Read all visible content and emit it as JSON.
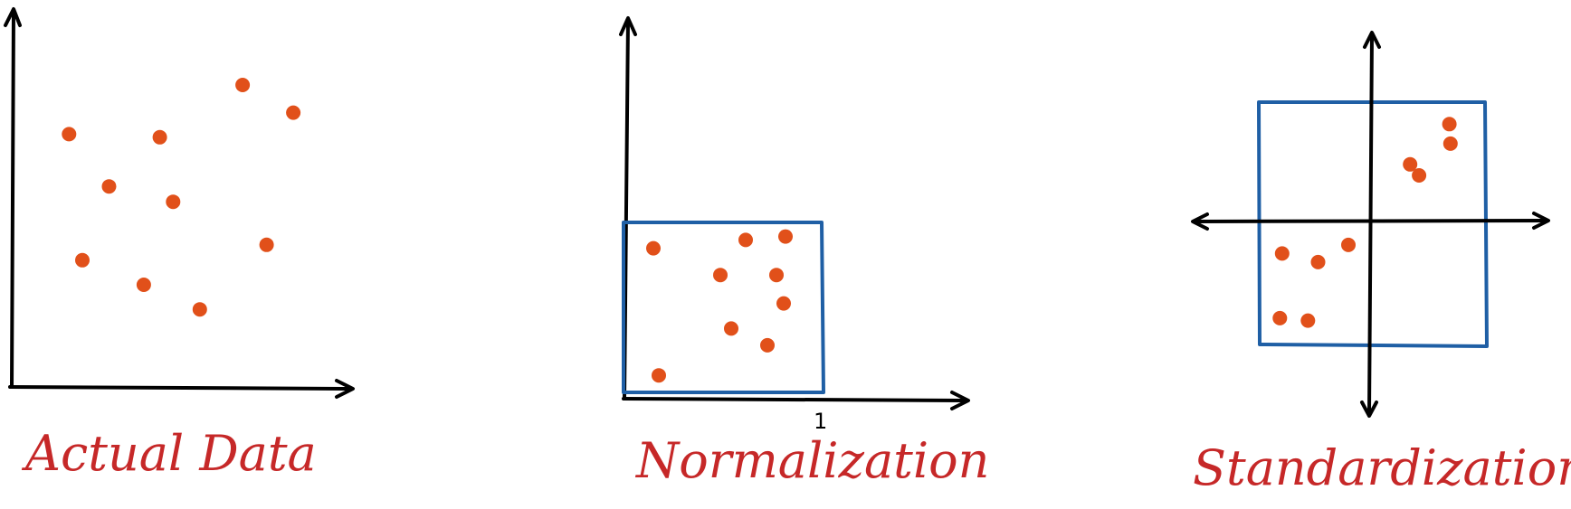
{
  "colors": {
    "point": "#e1501a",
    "box": "#1f5fa5",
    "axis": "#000000",
    "caption": "#c62828"
  },
  "panels": [
    {
      "caption": "Actual Data",
      "points": [
        [
          0.14,
          0.74
        ],
        [
          0.48,
          0.73
        ],
        [
          0.79,
          0.9
        ],
        [
          0.98,
          0.81
        ],
        [
          0.29,
          0.57
        ],
        [
          0.53,
          0.52
        ],
        [
          0.42,
          0.25
        ],
        [
          0.19,
          0.33
        ],
        [
          0.88,
          0.38
        ],
        [
          0.63,
          0.17
        ]
      ]
    },
    {
      "caption": "Normalization",
      "tick_label": "1",
      "points": [
        [
          0.11,
          0.84
        ],
        [
          0.62,
          0.89
        ],
        [
          0.84,
          0.91
        ],
        [
          0.48,
          0.68
        ],
        [
          0.79,
          0.68
        ],
        [
          0.83,
          0.51
        ],
        [
          0.54,
          0.36
        ],
        [
          0.74,
          0.26
        ],
        [
          0.14,
          0.08
        ]
      ]
    },
    {
      "caption": "Standardization",
      "points": [
        [
          0.69,
          0.82
        ],
        [
          0.7,
          0.66
        ],
        [
          0.34,
          0.49
        ],
        [
          0.42,
          0.4
        ],
        [
          -0.8,
          -0.24
        ],
        [
          -0.21,
          -0.17
        ],
        [
          -0.48,
          -0.31
        ],
        [
          -0.82,
          -0.77
        ],
        [
          -0.57,
          -0.79
        ]
      ]
    }
  ]
}
